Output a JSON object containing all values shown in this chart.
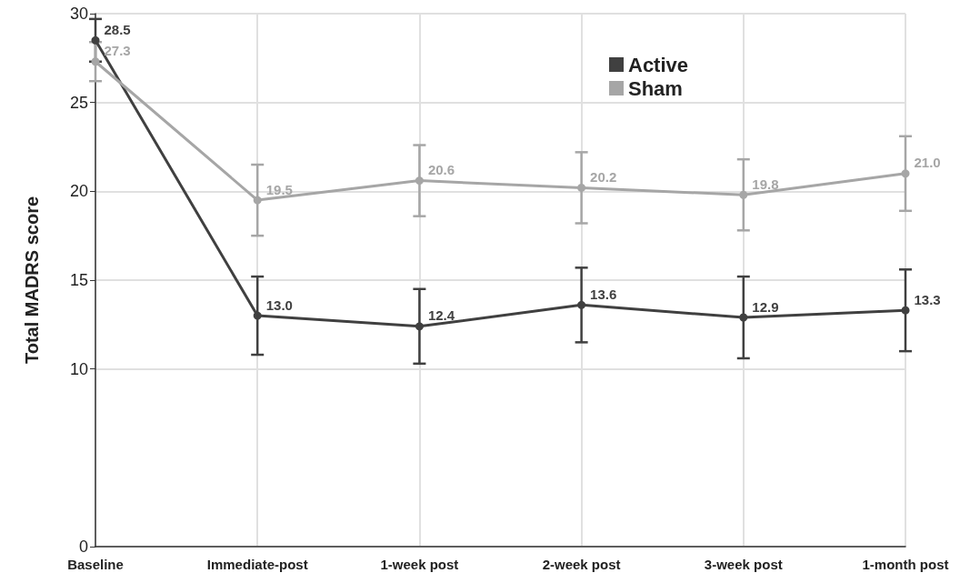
{
  "chart_data": {
    "type": "line",
    "ylabel": "Total MADRS score",
    "categories": [
      "Baseline",
      "Immediate-post",
      "1-week post",
      "2-week post",
      "3-week post",
      "1-month post"
    ],
    "series": [
      {
        "name": "Active",
        "color": "#404040",
        "values": [
          28.5,
          13.0,
          12.4,
          13.6,
          12.9,
          13.3
        ],
        "value_labels": [
          "28.5",
          "13.0",
          "12.4",
          "13.6",
          "12.9",
          "13.3"
        ],
        "errors": [
          1.2,
          2.2,
          2.1,
          2.1,
          2.3,
          2.3
        ]
      },
      {
        "name": "Sham",
        "color": "#a6a6a6",
        "values": [
          27.3,
          19.5,
          20.6,
          20.2,
          19.8,
          21.0
        ],
        "value_labels": [
          "27.3",
          "19.5",
          "20.6",
          "20.2",
          "19.8",
          "21.0"
        ],
        "errors": [
          1.1,
          2.0,
          2.0,
          2.0,
          2.0,
          2.1
        ]
      }
    ],
    "ylim": [
      0,
      30
    ],
    "yticks": [
      0,
      10,
      15,
      20,
      25,
      30
    ],
    "grid": true,
    "legend": "top right",
    "marker": "circle"
  }
}
